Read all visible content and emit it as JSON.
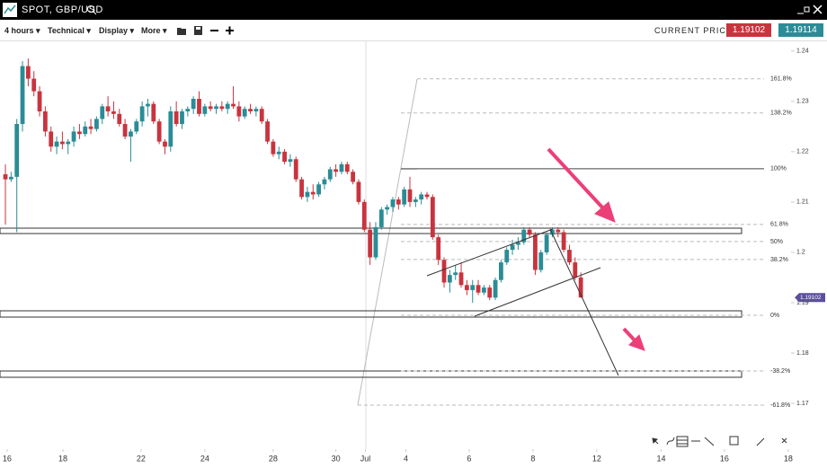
{
  "header": {
    "title": "SPOT, GBP/USD"
  },
  "toolbar": {
    "timeframe": "4 hours",
    "technical": "Technical",
    "display": "Display",
    "more": "More",
    "current_price_label": "CURRENT PRICE:",
    "bid": "1.19102",
    "ask": "1.19114"
  },
  "chart_data": {
    "type": "candlestick",
    "up_color": "#2a8c96",
    "down_color": "#c8343e",
    "ylim": [
      1.1609,
      1.2421
    ],
    "yticks": [
      1.17,
      1.18,
      1.19,
      1.2,
      1.21,
      1.22,
      1.23,
      1.24
    ],
    "xlim": [
      -0.95,
      137.9
    ],
    "xticks": [
      {
        "value": 0.3,
        "label": "16"
      },
      {
        "value": 10.1,
        "label": "18"
      },
      {
        "value": 23.8,
        "label": "22"
      },
      {
        "value": 35,
        "label": "24"
      },
      {
        "value": 47,
        "label": "28"
      },
      {
        "value": 58,
        "label": "30"
      },
      {
        "value": 63.2,
        "label": "Jul"
      },
      {
        "value": 70.3,
        "label": "4"
      },
      {
        "value": 81.4,
        "label": "6"
      },
      {
        "value": 92.6,
        "label": "8"
      },
      {
        "value": 103.8,
        "label": "12"
      },
      {
        "value": 115.1,
        "label": "14"
      },
      {
        "value": 126.2,
        "label": "16"
      },
      {
        "value": 137.4,
        "label": "18"
      }
    ],
    "last_price": 1.19102,
    "fib_levels": [
      {
        "label": "161.8%",
        "price": 1.23446
      },
      {
        "label": "138.2%",
        "price": 1.22768
      },
      {
        "label": "100%",
        "price": 1.21661
      },
      {
        "label": "61.8%",
        "price": 1.20554
      },
      {
        "label": "50%",
        "price": 1.20214
      },
      {
        "label": "38.2%",
        "price": 1.19857
      },
      {
        "label": "0%",
        "price": 1.1875
      },
      {
        "label": "-38.2%",
        "price": 1.17643
      },
      {
        "label": "-61.8%",
        "price": 1.16964
      }
    ],
    "candles": [
      [
        1.2155,
        1.2175,
        1.2055,
        1.2145
      ],
      [
        1.2145,
        1.216,
        1.214,
        1.215
      ],
      [
        1.215,
        1.2265,
        1.204,
        1.2255
      ],
      [
        1.2255,
        1.238,
        1.224,
        1.237
      ],
      [
        1.237,
        1.2385,
        1.233,
        1.2345
      ],
      [
        1.2345,
        1.236,
        1.231,
        1.232
      ],
      [
        1.232,
        1.233,
        1.227,
        1.228
      ],
      [
        1.228,
        1.229,
        1.223,
        1.224
      ],
      [
        1.224,
        1.225,
        1.22,
        1.221
      ],
      [
        1.221,
        1.223,
        1.2195,
        1.222
      ],
      [
        1.222,
        1.224,
        1.2205,
        1.2215
      ],
      [
        1.2215,
        1.2225,
        1.2195,
        1.222
      ],
      [
        1.222,
        1.225,
        1.221,
        1.224
      ],
      [
        1.224,
        1.2255,
        1.2225,
        1.2235
      ],
      [
        1.2235,
        1.226,
        1.223,
        1.225
      ],
      [
        1.225,
        1.2265,
        1.2235,
        1.2245
      ],
      [
        1.2245,
        1.227,
        1.224,
        1.2265
      ],
      [
        1.2265,
        1.2295,
        1.2255,
        1.229
      ],
      [
        1.229,
        1.231,
        1.227,
        1.228
      ],
      [
        1.228,
        1.23,
        1.2265,
        1.2275
      ],
      [
        1.2275,
        1.2285,
        1.225,
        1.2255
      ],
      [
        1.2255,
        1.2265,
        1.2225,
        1.223
      ],
      [
        1.223,
        1.2245,
        1.218,
        1.224
      ],
      [
        1.224,
        1.2265,
        1.2235,
        1.226
      ],
      [
        1.226,
        1.23,
        1.225,
        1.229
      ],
      [
        1.229,
        1.2305,
        1.227,
        1.2295
      ],
      [
        1.2295,
        1.23,
        1.2255,
        1.226
      ],
      [
        1.226,
        1.2265,
        1.2215,
        1.222
      ],
      [
        1.222,
        1.2225,
        1.2195,
        1.221
      ],
      [
        1.221,
        1.229,
        1.22,
        1.228
      ],
      [
        1.228,
        1.23,
        1.225,
        1.2255
      ],
      [
        1.2255,
        1.2285,
        1.2245,
        1.228
      ],
      [
        1.228,
        1.229,
        1.227,
        1.2285
      ],
      [
        1.2285,
        1.231,
        1.2275,
        1.2305
      ],
      [
        1.2305,
        1.232,
        1.227,
        1.2275
      ],
      [
        1.2275,
        1.2295,
        1.227,
        1.229
      ],
      [
        1.229,
        1.23,
        1.228,
        1.2285
      ],
      [
        1.2285,
        1.2295,
        1.2275,
        1.229
      ],
      [
        1.229,
        1.23,
        1.228,
        1.2285
      ],
      [
        1.2285,
        1.23,
        1.2275,
        1.2295
      ],
      [
        1.2295,
        1.233,
        1.2285,
        1.229
      ],
      [
        1.229,
        1.23,
        1.226,
        1.227
      ],
      [
        1.227,
        1.229,
        1.2265,
        1.2285
      ],
      [
        1.2285,
        1.2295,
        1.2275,
        1.228
      ],
      [
        1.228,
        1.229,
        1.227,
        1.2285
      ],
      [
        1.2285,
        1.229,
        1.2255,
        1.226
      ],
      [
        1.226,
        1.2265,
        1.2215,
        1.222
      ],
      [
        1.222,
        1.2225,
        1.219,
        1.2195
      ],
      [
        1.2195,
        1.221,
        1.2185,
        1.22
      ],
      [
        1.22,
        1.2205,
        1.2175,
        1.218
      ],
      [
        1.218,
        1.2195,
        1.217,
        1.2185
      ],
      [
        1.2185,
        1.219,
        1.214,
        1.2145
      ],
      [
        1.2145,
        1.215,
        1.2105,
        1.211
      ],
      [
        1.211,
        1.213,
        1.21,
        1.212
      ],
      [
        1.212,
        1.2135,
        1.2105,
        1.2115
      ],
      [
        1.2115,
        1.214,
        1.211,
        1.2135
      ],
      [
        1.2135,
        1.215,
        1.2125,
        1.2145
      ],
      [
        1.2145,
        1.217,
        1.214,
        1.2165
      ],
      [
        1.2165,
        1.2175,
        1.215,
        1.216
      ],
      [
        1.216,
        1.218,
        1.2155,
        1.2175
      ],
      [
        1.2175,
        1.218,
        1.2155,
        1.216
      ],
      [
        1.216,
        1.2165,
        1.2135,
        1.214
      ],
      [
        1.214,
        1.2145,
        1.2095,
        1.21
      ],
      [
        1.21,
        1.2105,
        1.204,
        1.2045
      ],
      [
        1.2045,
        1.206,
        1.1975,
        1.199
      ],
      [
        1.199,
        1.206,
        1.1985,
        1.205
      ],
      [
        1.205,
        1.209,
        1.2045,
        1.2085
      ],
      [
        1.2085,
        1.2095,
        1.2075,
        1.209
      ],
      [
        1.209,
        1.211,
        1.208,
        1.2105
      ],
      [
        1.2105,
        1.211,
        1.2085,
        1.2095
      ],
      [
        1.2095,
        1.213,
        1.209,
        1.2125
      ],
      [
        1.2125,
        1.215,
        1.209,
        1.21
      ],
      [
        1.21,
        1.211,
        1.209,
        1.2105
      ],
      [
        1.2105,
        1.212,
        1.2095,
        1.2115
      ],
      [
        1.2115,
        1.212,
        1.2105,
        1.211
      ],
      [
        1.211,
        1.2115,
        1.2025,
        1.203
      ],
      [
        1.203,
        1.2035,
        1.1975,
        1.1985
      ],
      [
        1.1985,
        1.199,
        1.193,
        1.194
      ],
      [
        1.194,
        1.1965,
        1.192,
        1.1955
      ],
      [
        1.1955,
        1.1975,
        1.1945,
        1.196
      ],
      [
        1.196,
        1.198,
        1.193,
        1.1935
      ],
      [
        1.1935,
        1.1945,
        1.1915,
        1.1925
      ],
      [
        1.1925,
        1.1945,
        1.19,
        1.1935
      ],
      [
        1.1935,
        1.1945,
        1.1915,
        1.192
      ],
      [
        1.192,
        1.1935,
        1.1915,
        1.193
      ],
      [
        1.193,
        1.1935,
        1.1905,
        1.191
      ],
      [
        1.191,
        1.195,
        1.1905,
        1.1945
      ],
      [
        1.1945,
        1.1985,
        1.194,
        1.198
      ],
      [
        1.198,
        1.201,
        1.1975,
        1.2005
      ],
      [
        1.2005,
        1.2025,
        1.1995,
        1.2015
      ],
      [
        1.2015,
        1.203,
        1.2005,
        1.202
      ],
      [
        1.202,
        1.205,
        1.2015,
        1.2045
      ],
      [
        1.2045,
        1.205,
        1.203,
        1.2035
      ],
      [
        1.2035,
        1.204,
        1.1955,
        1.1965
      ],
      [
        1.1965,
        1.2005,
        1.196,
        1.2
      ],
      [
        1.2,
        1.204,
        1.1995,
        1.2035
      ],
      [
        1.2035,
        1.205,
        1.203,
        1.2045
      ],
      [
        1.2045,
        1.205,
        1.203,
        1.204
      ],
      [
        1.204,
        1.2045,
        1.2,
        1.2005
      ],
      [
        1.2005,
        1.2015,
        1.1975,
        1.198
      ],
      [
        1.198,
        1.199,
        1.1945,
        1.195
      ],
      [
        1.195,
        1.196,
        1.191,
        1.19102
      ]
    ]
  }
}
